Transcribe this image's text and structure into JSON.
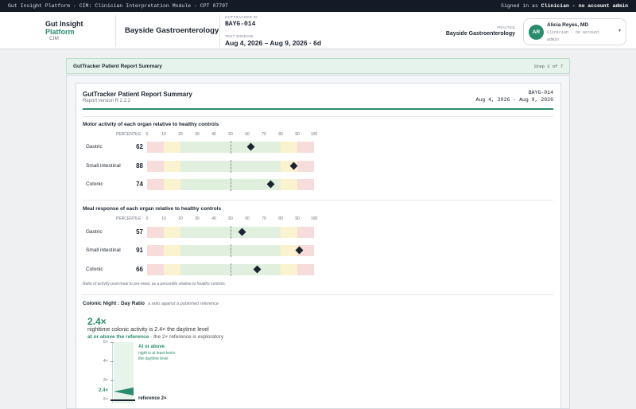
{
  "topbar": {
    "left": "Gut Insight Platform - CIM: Clinician Interpretation Module - CPT 0779T",
    "signed_prefix": "Signed in as",
    "role": "Clinician",
    "suffix": "- no account admin"
  },
  "header": {
    "brand_line1": "Gut Insight",
    "brand_line2": "Platform",
    "brand_sub": "CIM",
    "practice_title": "Bayside Gastroenterology",
    "guttracker_label": "GUTTRACKER ID",
    "guttracker_id": "BAYG-014",
    "window_label": "TEST WINDOW",
    "window_value": "Aug 4, 2026 – Aug 9, 2026 · 6d",
    "practice_label": "PRACTICE",
    "practice_value": "Bayside Gastroenterology"
  },
  "user": {
    "initials": "AR",
    "name": "Alicia Reyes, MD",
    "role": "Clinician · no account admin"
  },
  "step": {
    "title": "GutTracker Patient Report Summary",
    "counter": "Step 2 of 7"
  },
  "report": {
    "title": "GutTracker Patient Report Summary",
    "version": "Report version R 2.2.2",
    "id": "BAYG-014",
    "range": "Aug 4, 2026 - Aug 9, 2026"
  },
  "percentile_label": "PERCENTILE",
  "ticks": [
    "0",
    "10",
    "20",
    "30",
    "40",
    "50",
    "60",
    "70",
    "80",
    "90",
    "100"
  ],
  "bands": [
    {
      "from": 0,
      "to": 10,
      "color": "#f7dcdc"
    },
    {
      "from": 10,
      "to": 20,
      "color": "#fbf2cf"
    },
    {
      "from": 20,
      "to": 80,
      "color": "#e1efdf"
    },
    {
      "from": 80,
      "to": 90,
      "color": "#fbf2cf"
    },
    {
      "from": 90,
      "to": 100,
      "color": "#f7dcdc"
    }
  ],
  "motor": {
    "title": "Motor activity of each organ relative to healthy controls",
    "rows": [
      {
        "label": "Gastric",
        "value": "62"
      },
      {
        "label": "Small intestinal",
        "value": "88"
      },
      {
        "label": "Colonic",
        "value": "74"
      }
    ]
  },
  "meal": {
    "title": "Meal response of each organ relative to healthy controls",
    "rows": [
      {
        "label": "Gastric",
        "value": "57"
      },
      {
        "label": "Small intestinal",
        "value": "91"
      },
      {
        "label": "Colonic",
        "value": "66"
      }
    ],
    "note": "Ratio of activity post-meal to pre-meal, as a percentile relative to healthy controls."
  },
  "colonic": {
    "title": "Colonic Night : Day Ratio",
    "subtitle": "a ratio against a published reference",
    "value": "2.4×",
    "desc": "nighttime colonic activity is 2.4× the daytime level",
    "status": "at or above the reference",
    "status_note": "· the 2× reference is exploratory",
    "axis": [
      "5×",
      "4×",
      "3×",
      "2×"
    ],
    "current_label": "2.4×",
    "band_title": "At or above",
    "band_note_1": "night is at least twice",
    "band_note_2": "the daytime level",
    "reference_label": "reference 2×"
  },
  "colors": {
    "accent": "#2a8c6e",
    "dark": "#141a26"
  }
}
